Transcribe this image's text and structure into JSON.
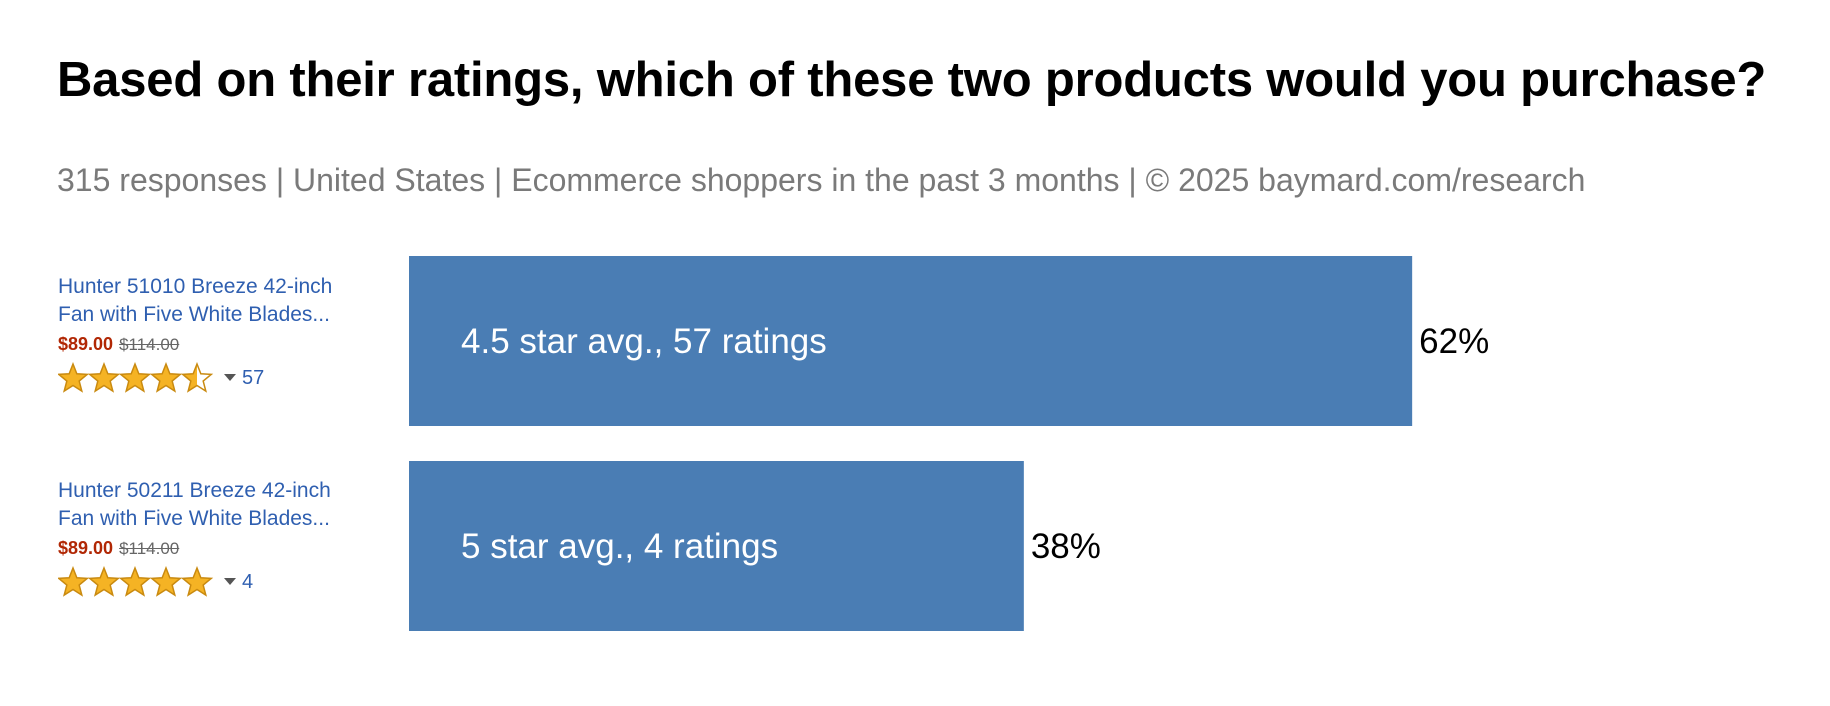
{
  "title": "Based on their ratings, which of these two products would you purchase?",
  "subtitle": "315 responses  |  United States  |  Ecommerce shoppers in the past 3 months | © 2025 baymard.com/research",
  "products": [
    {
      "name": "Hunter 51010 Breeze 42-inch Fan with Five White Blades...",
      "price": "$89.00",
      "old_price": "$114.00",
      "stars": 4.5,
      "count": "57"
    },
    {
      "name": "Hunter 50211 Breeze 42-inch Fan with Five White Blades...",
      "price": "$89.00",
      "old_price": "$114.00",
      "stars": 5,
      "count": "4"
    }
  ],
  "chart_data": {
    "type": "bar",
    "orientation": "horizontal",
    "categories": [
      "4.5 star avg., 57 ratings",
      "5 star avg., 4 ratings"
    ],
    "values": [
      62,
      38
    ],
    "value_labels": [
      "62%",
      "38%"
    ],
    "xlim": [
      0,
      100
    ],
    "color": "#4a7db4",
    "grid": false
  }
}
